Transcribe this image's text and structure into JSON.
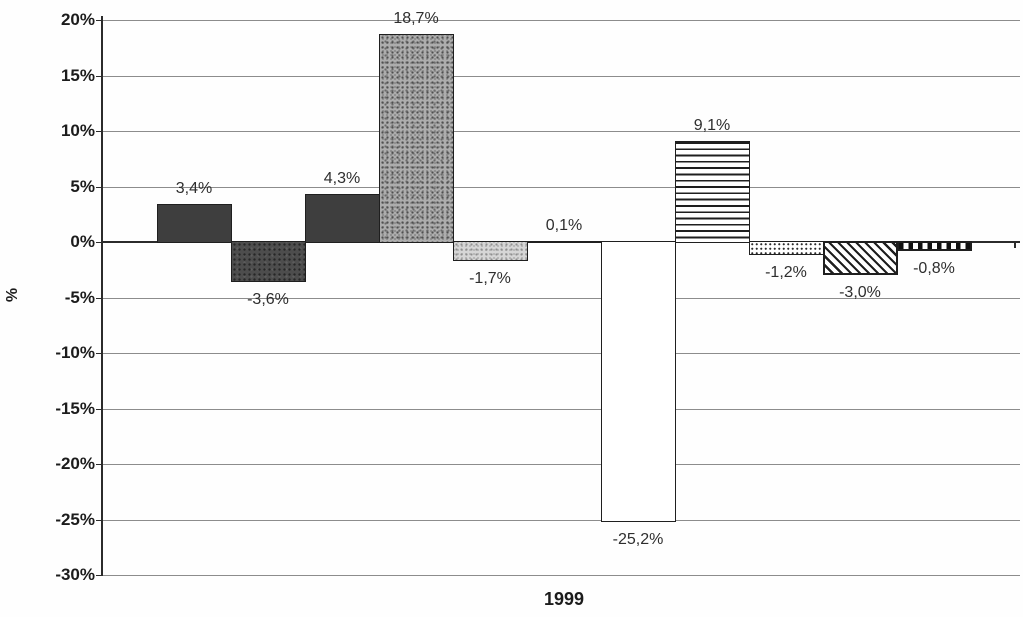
{
  "chart_data": {
    "type": "bar",
    "title": "",
    "xlabel": "",
    "ylabel": "%",
    "categories": [
      "1999"
    ],
    "ylim": [
      -30,
      20
    ],
    "ytick_interval": 5,
    "grid": "horizontal",
    "legend": "none",
    "decimal_separator": ",",
    "colors": {
      "background": "#fefefe",
      "grid": "#8c8c8c",
      "axis": "#2b2b2b",
      "text": "#1c1c1c",
      "bar_outline": "#1f1f1f"
    },
    "yticks": [
      {
        "value": 20,
        "label": "20%"
      },
      {
        "value": 15,
        "label": "15%"
      },
      {
        "value": 10,
        "label": "10%"
      },
      {
        "value": 5,
        "label": "5%"
      },
      {
        "value": 0,
        "label": "0%"
      },
      {
        "value": -5,
        "label": "-5%"
      },
      {
        "value": -10,
        "label": "-10%"
      },
      {
        "value": -15,
        "label": "-15%"
      },
      {
        "value": -20,
        "label": "-20%"
      },
      {
        "value": -25,
        "label": "-25%"
      },
      {
        "value": -30,
        "label": "-30%"
      }
    ],
    "series": [
      {
        "value": 3.4,
        "label": "3,4%",
        "fill": "solid-dark",
        "color": "#3e3e3e"
      },
      {
        "value": -3.6,
        "label": "-3,6%",
        "fill": "solid-dark-mottled",
        "color": "#4d4d4d"
      },
      {
        "value": 4.3,
        "label": "4,3%",
        "fill": "solid-dark",
        "color": "#3e3e3e"
      },
      {
        "value": 18.7,
        "label": "18,7%",
        "fill": "gray-speckled",
        "color": "#adadad"
      },
      {
        "value": -1.7,
        "label": "-1,7%",
        "fill": "light-speckled",
        "color": "#d6d6d6"
      },
      {
        "value": 0.1,
        "label": "0,1%",
        "fill": "white",
        "color": "#ffffff"
      },
      {
        "value": -25.2,
        "label": "-25,2%",
        "fill": "white",
        "color": "#ffffff"
      },
      {
        "value": 9.1,
        "label": "9,1%",
        "fill": "horizontal-lines",
        "color": "#ffffff"
      },
      {
        "value": -1.2,
        "label": "-1,2%",
        "fill": "fine-dots",
        "color": "#ffffff"
      },
      {
        "value": -3.0,
        "label": "-3,0%",
        "fill": "diagonal-hatch",
        "color": "#ffffff"
      },
      {
        "value": -0.8,
        "label": "-0,8%",
        "fill": "vertical-stripes",
        "color": "#ffffff"
      }
    ]
  }
}
